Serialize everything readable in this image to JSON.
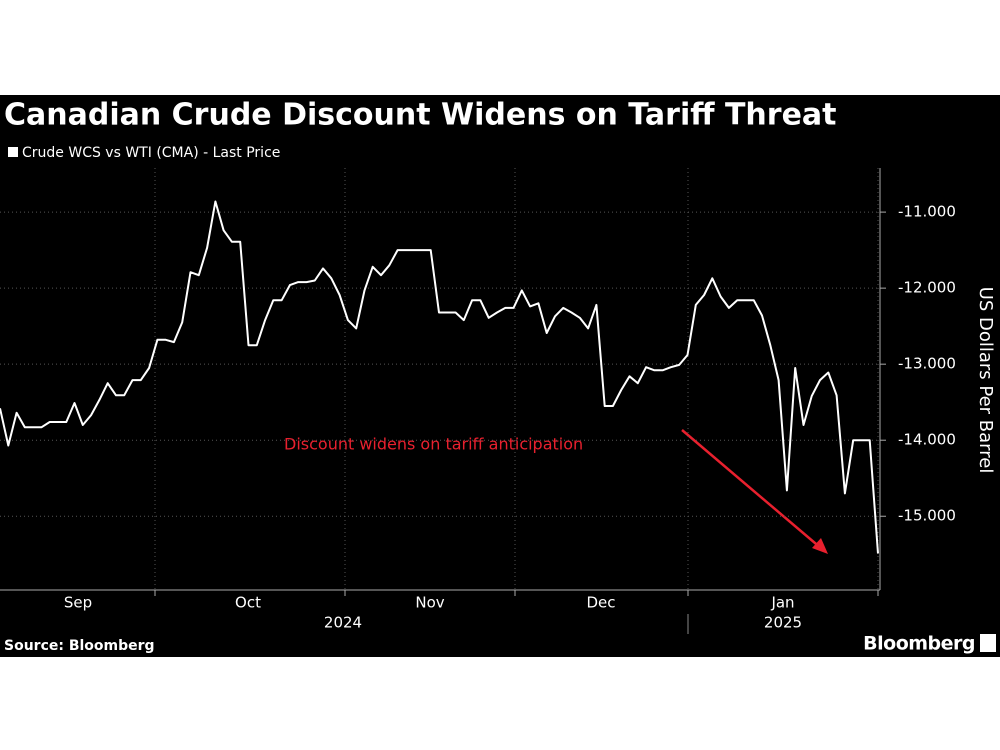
{
  "chart_data": {
    "type": "line",
    "title": "Canadian Crude Discount Widens on Tariff Threat",
    "y_label": "US Dollars Per Barrel",
    "source": "Source: Bloomberg",
    "brand": "Bloomberg",
    "annotation": {
      "text": "Discount widens on tariff anticipation",
      "color": "#e8202e"
    },
    "months": [
      "Sep",
      "Oct",
      "Nov",
      "Dec",
      "Jan"
    ],
    "years": [
      "2024",
      "2025"
    ],
    "series": [
      {
        "name": "Crude WCS vs WTI (CMA) - Last Price",
        "color": "#ffffff",
        "values": [
          -13.58,
          -14.07,
          -13.64,
          -13.83,
          -13.83,
          -13.83,
          -13.76,
          -13.76,
          -13.76,
          -13.51,
          -13.8,
          -13.67,
          -13.47,
          -13.25,
          -13.41,
          -13.41,
          -13.21,
          -13.21,
          -13.05,
          -12.68,
          -12.68,
          -12.71,
          -12.45,
          -11.79,
          -11.83,
          -11.47,
          -10.86,
          -11.24,
          -11.39,
          -11.39,
          -12.75,
          -12.75,
          -12.42,
          -12.16,
          -12.16,
          -11.96,
          -11.92,
          -11.92,
          -11.9,
          -11.74,
          -11.87,
          -12.09,
          -12.42,
          -12.53,
          -12.03,
          -11.72,
          -11.83,
          -11.7,
          -11.5,
          -11.5,
          -11.5,
          -11.5,
          -11.5,
          -12.32,
          -12.32,
          -12.32,
          -12.42,
          -12.16,
          -12.16,
          -12.39,
          -12.32,
          -12.26,
          -12.26,
          -12.03,
          -12.24,
          -12.2,
          -12.59,
          -12.37,
          -12.26,
          -12.32,
          -12.39,
          -12.53,
          -12.22,
          -13.55,
          -13.55,
          -13.34,
          -13.16,
          -13.25,
          -13.04,
          -13.08,
          -13.08,
          -13.04,
          -13.01,
          -12.88,
          -12.22,
          -12.09,
          -11.87,
          -12.11,
          -12.26,
          -12.16,
          -12.16,
          -12.16,
          -12.36,
          -12.75,
          -13.21,
          -14.66,
          -13.05,
          -13.8,
          -13.42,
          -13.21,
          -13.11,
          -13.41,
          -14.7,
          -14.0,
          -14.0,
          -14.0,
          -15.49
        ]
      }
    ],
    "ylim": [
      -15.97,
      -10.42
    ],
    "yticks": [
      {
        "value": -11,
        "label": "-11.000"
      },
      {
        "value": -12,
        "label": "-12.000"
      },
      {
        "value": -13,
        "label": "-13.000"
      },
      {
        "value": -14,
        "label": "-14.000"
      },
      {
        "value": -15,
        "label": "-15.000"
      }
    ],
    "grid": true
  }
}
